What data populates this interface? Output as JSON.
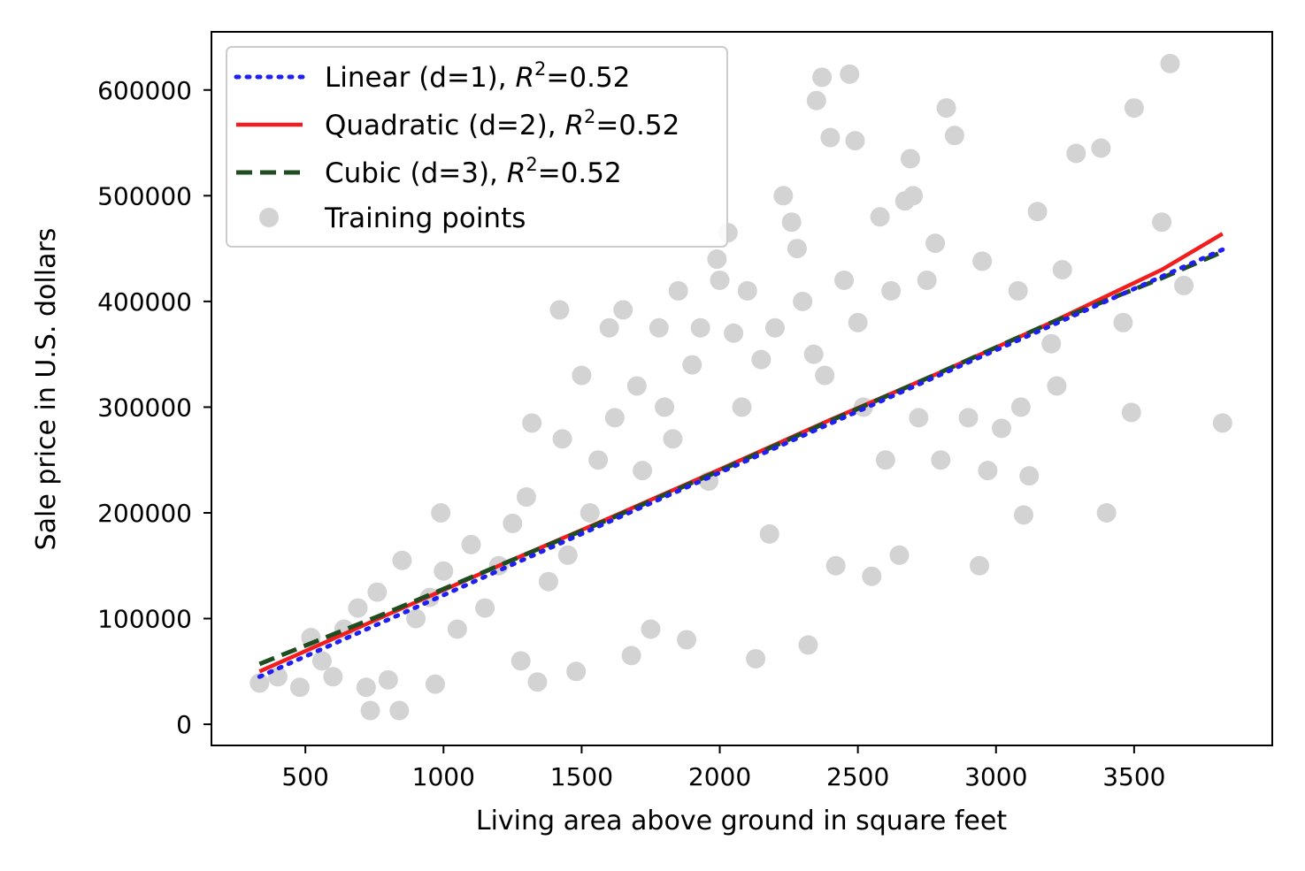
{
  "chart_data": {
    "type": "scatter",
    "title": "",
    "xlabel": "Living area above ground in square feet",
    "ylabel": "Sale price in U.S. dollars",
    "xlim": [
      160,
      4000
    ],
    "ylim": [
      -20000,
      655000
    ],
    "xticks": [
      500,
      1000,
      1500,
      2000,
      2500,
      3000,
      3500
    ],
    "yticks": [
      0,
      100000,
      200000,
      300000,
      400000,
      500000,
      600000
    ],
    "grid": false,
    "legend_position": "top-left",
    "series": [
      {
        "name": "Linear (d=1), ",
        "r2_symbol": "R",
        "r2_exp": "2",
        "r2_value": "=0.52",
        "kind": "line",
        "style": "dotted",
        "color": "#1f1ff2",
        "x": [
          334,
          3820
        ],
        "y": [
          45000,
          449000
        ]
      },
      {
        "name": "Quadratic (d=2), ",
        "r2_symbol": "R",
        "r2_exp": "2",
        "r2_value": "=0.52",
        "kind": "line",
        "style": "solid",
        "color": "#f21d1d",
        "x": [
          334,
          800,
          1200,
          1600,
          2000,
          2400,
          2800,
          3200,
          3600,
          3820
        ],
        "y": [
          50000,
          104000,
          150000,
          195000,
          241000,
          288000,
          333000,
          380000,
          430000,
          464000
        ]
      },
      {
        "name": "Cubic (d=3), ",
        "r2_symbol": "R",
        "r2_exp": "2",
        "r2_value": "=0.52",
        "kind": "line",
        "style": "dashed",
        "color": "#1f4d1f",
        "x": [
          334,
          800,
          1200,
          1600,
          2000,
          2400,
          2800,
          3200,
          3600,
          3820
        ],
        "y": [
          57000,
          106000,
          150000,
          194000,
          240000,
          287000,
          333000,
          380000,
          422000,
          447000
        ]
      },
      {
        "name": "Training points",
        "kind": "scatter",
        "color": "#d3d3d3",
        "points": [
          [
            334,
            39000
          ],
          [
            400,
            45000
          ],
          [
            480,
            35000
          ],
          [
            520,
            82000
          ],
          [
            560,
            60000
          ],
          [
            600,
            45000
          ],
          [
            640,
            90000
          ],
          [
            690,
            110000
          ],
          [
            720,
            35000
          ],
          [
            735,
            13000
          ],
          [
            760,
            125000
          ],
          [
            800,
            42000
          ],
          [
            840,
            13000
          ],
          [
            850,
            155000
          ],
          [
            900,
            100000
          ],
          [
            950,
            120000
          ],
          [
            970,
            38000
          ],
          [
            990,
            200000
          ],
          [
            1000,
            145000
          ],
          [
            1050,
            90000
          ],
          [
            1100,
            170000
          ],
          [
            1150,
            110000
          ],
          [
            1200,
            150000
          ],
          [
            1250,
            190000
          ],
          [
            1280,
            60000
          ],
          [
            1300,
            215000
          ],
          [
            1320,
            285000
          ],
          [
            1340,
            40000
          ],
          [
            1380,
            135000
          ],
          [
            1420,
            392000
          ],
          [
            1430,
            270000
          ],
          [
            1450,
            160000
          ],
          [
            1480,
            50000
          ],
          [
            1500,
            330000
          ],
          [
            1530,
            200000
          ],
          [
            1560,
            250000
          ],
          [
            1600,
            375000
          ],
          [
            1620,
            290000
          ],
          [
            1650,
            392000
          ],
          [
            1680,
            65000
          ],
          [
            1700,
            320000
          ],
          [
            1720,
            240000
          ],
          [
            1750,
            90000
          ],
          [
            1780,
            375000
          ],
          [
            1800,
            300000
          ],
          [
            1830,
            270000
          ],
          [
            1850,
            410000
          ],
          [
            1880,
            80000
          ],
          [
            1900,
            340000
          ],
          [
            1930,
            375000
          ],
          [
            1960,
            230000
          ],
          [
            1990,
            440000
          ],
          [
            2000,
            420000
          ],
          [
            2030,
            465000
          ],
          [
            2050,
            370000
          ],
          [
            2080,
            300000
          ],
          [
            2100,
            410000
          ],
          [
            2130,
            62000
          ],
          [
            2150,
            345000
          ],
          [
            2180,
            180000
          ],
          [
            2200,
            375000
          ],
          [
            2230,
            500000
          ],
          [
            2260,
            475000
          ],
          [
            2280,
            450000
          ],
          [
            2300,
            400000
          ],
          [
            2320,
            75000
          ],
          [
            2340,
            350000
          ],
          [
            2350,
            590000
          ],
          [
            2370,
            612000
          ],
          [
            2380,
            330000
          ],
          [
            2400,
            555000
          ],
          [
            2420,
            150000
          ],
          [
            2450,
            420000
          ],
          [
            2470,
            615000
          ],
          [
            2490,
            552000
          ],
          [
            2500,
            380000
          ],
          [
            2520,
            300000
          ],
          [
            2550,
            140000
          ],
          [
            2580,
            480000
          ],
          [
            2600,
            250000
          ],
          [
            2620,
            410000
          ],
          [
            2650,
            160000
          ],
          [
            2670,
            495000
          ],
          [
            2690,
            535000
          ],
          [
            2700,
            500000
          ],
          [
            2720,
            290000
          ],
          [
            2750,
            420000
          ],
          [
            2780,
            455000
          ],
          [
            2800,
            250000
          ],
          [
            2820,
            583000
          ],
          [
            2850,
            557000
          ],
          [
            2900,
            290000
          ],
          [
            2940,
            150000
          ],
          [
            2950,
            438000
          ],
          [
            2970,
            240000
          ],
          [
            3020,
            280000
          ],
          [
            3080,
            410000
          ],
          [
            3090,
            300000
          ],
          [
            3100,
            198000
          ],
          [
            3120,
            235000
          ],
          [
            3150,
            485000
          ],
          [
            3200,
            360000
          ],
          [
            3220,
            320000
          ],
          [
            3240,
            430000
          ],
          [
            3290,
            540000
          ],
          [
            3380,
            545000
          ],
          [
            3400,
            200000
          ],
          [
            3460,
            380000
          ],
          [
            3490,
            295000
          ],
          [
            3500,
            583000
          ],
          [
            3600,
            475000
          ],
          [
            3630,
            625000
          ],
          [
            3680,
            415000
          ],
          [
            3820,
            285000
          ]
        ]
      }
    ]
  }
}
